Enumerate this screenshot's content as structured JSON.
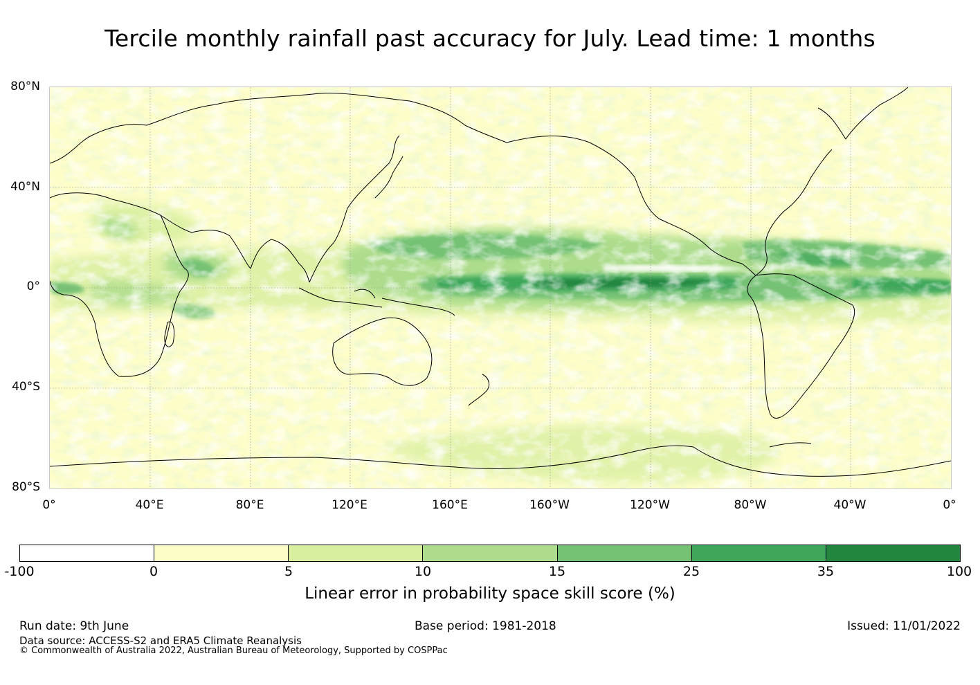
{
  "title": "Tercile monthly rainfall past accuracy for July. Lead time: 1 months",
  "map": {
    "lat_labels": [
      "80°N",
      "40°N",
      "0°",
      "40°S",
      "80°S"
    ],
    "lon_labels": [
      "0°",
      "40°E",
      "80°E",
      "120°E",
      "160°E",
      "160°W",
      "120°W",
      "80°W",
      "40°W",
      "0°"
    ],
    "projection": "equirectangular, 0° to 360° longitude, 80°N to 80°S",
    "gridlines": true
  },
  "colorbar": {
    "ticks": [
      "-100",
      "0",
      "5",
      "10",
      "15",
      "25",
      "35",
      "100"
    ],
    "colors": [
      "#ffffff",
      "#fdfdc8",
      "#d9efa0",
      "#acdc8c",
      "#76c274",
      "#3ea75a",
      "#22863f"
    ],
    "label": "Linear error in probability space skill score (%)"
  },
  "footer": {
    "run_date": "Run date: 9th June",
    "base_period": "Base period: 1981-2018",
    "issued": "Issued: 11/01/2022",
    "data_source": "Data source: ACCESS-S2 and ERA5 Climate Reanalysis",
    "copyright": "© Commonwealth of Australia 2022, Australian Bureau of Meteorology, Supported by COSPPac"
  }
}
